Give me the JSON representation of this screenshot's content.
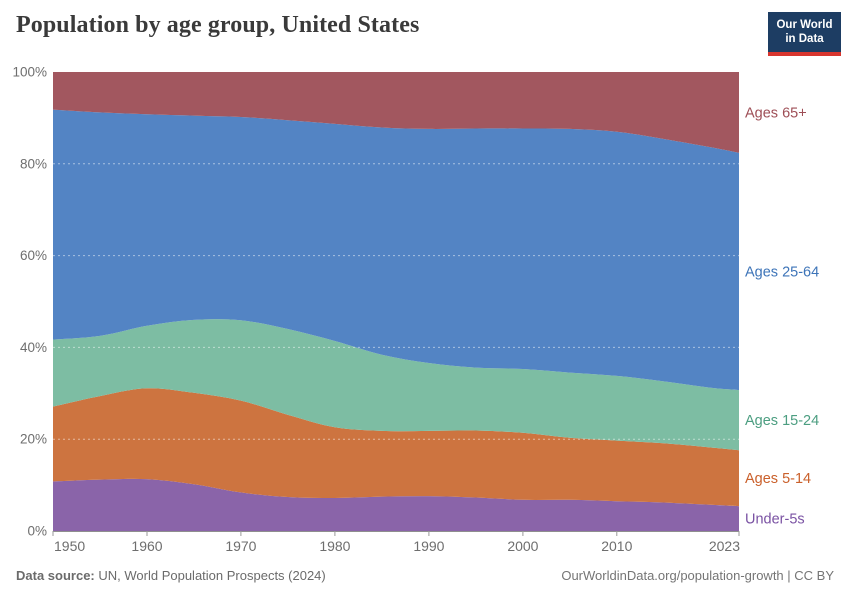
{
  "header": {
    "title": "Population by age group, United States",
    "logo": {
      "line1": "Our World",
      "line2": "in Data",
      "bg_color": "#1d3d63",
      "bar_color": "#d8352e"
    }
  },
  "footer": {
    "source_label": "Data source:",
    "source_text": "UN, World Population Prospects (2024)",
    "credit": "OurWorldinData.org/population-growth | CC BY"
  },
  "chart_data": {
    "type": "area",
    "stacked": true,
    "normalized": true,
    "title": "Population by age group, United States",
    "unit": "% of total population",
    "xlabel": "",
    "ylabel": "",
    "ylim": [
      0,
      100
    ],
    "grid": "horizontal-dashed",
    "legend_position": "right",
    "x": [
      1950,
      1955,
      1960,
      1965,
      1970,
      1975,
      1980,
      1985,
      1990,
      1995,
      2000,
      2005,
      2010,
      2015,
      2020,
      2023
    ],
    "x_ticks": [
      "1950",
      "1960",
      "1970",
      "1980",
      "1990",
      "2000",
      "2010",
      "2023"
    ],
    "y_ticks": [
      "0%",
      "20%",
      "40%",
      "60%",
      "80%",
      "100%"
    ],
    "series": [
      {
        "name": "Under-5s",
        "color": "#8a64a9",
        "label_color": "#7a52a3",
        "values": [
          10.8,
          11.2,
          11.3,
          10.2,
          8.4,
          7.4,
          7.2,
          7.5,
          7.6,
          7.3,
          6.8,
          6.8,
          6.5,
          6.2,
          5.7,
          5.4
        ]
      },
      {
        "name": "Ages 5-14",
        "color": "#cd7440",
        "label_color": "#ca602b",
        "values": [
          16.3,
          18.2,
          19.8,
          19.9,
          20.0,
          17.9,
          15.4,
          14.3,
          14.2,
          14.6,
          14.6,
          13.5,
          13.2,
          12.9,
          12.5,
          12.2
        ]
      },
      {
        "name": "Ages 15-24",
        "color": "#7dbda3",
        "label_color": "#4c9e81",
        "values": [
          14.6,
          13.1,
          13.6,
          15.9,
          17.5,
          18.7,
          18.8,
          16.6,
          14.8,
          13.7,
          13.9,
          14.2,
          14.1,
          13.5,
          13.0,
          13.1
        ]
      },
      {
        "name": "Ages 25-64",
        "color": "#5384c4",
        "label_color": "#3d74b8",
        "values": [
          50.1,
          48.7,
          46.1,
          44.5,
          44.3,
          45.5,
          47.3,
          49.5,
          51.0,
          52.1,
          52.4,
          53.1,
          53.2,
          52.8,
          52.4,
          51.7
        ]
      },
      {
        "name": "Ages 65+",
        "color": "#a2575f",
        "label_color": "#9e4e56",
        "values": [
          8.2,
          8.8,
          9.2,
          9.5,
          9.8,
          10.5,
          11.3,
          12.1,
          12.4,
          12.3,
          12.3,
          12.4,
          13.0,
          14.6,
          16.4,
          17.6
        ]
      }
    ]
  }
}
